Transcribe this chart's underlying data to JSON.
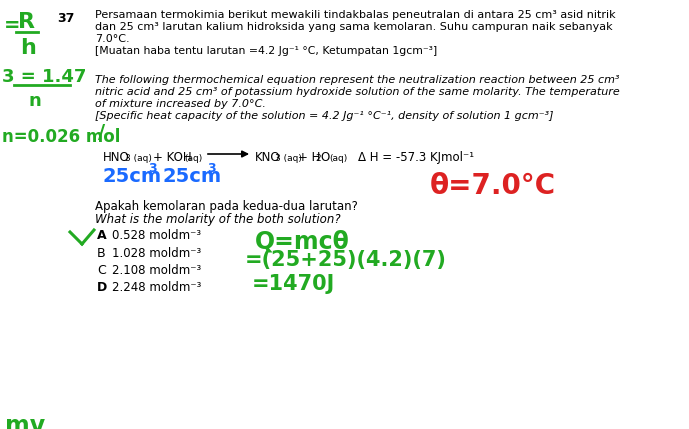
{
  "bg_color": "#ffffff",
  "black": "#000000",
  "green": "#22aa22",
  "blue": "#1a6aff",
  "red": "#dd2222",
  "q_num": "37",
  "ml1": "Persamaan termokimia berikut mewakili tindakbalas peneutralan di antara 25 cm³ asid nitrik",
  "ml2": "dan 25 cm³ larutan kalium hidroksida yang sama kemolaran. Suhu campuran naik sebanyak",
  "ml3": "7.0°C.",
  "ml4": "[Muatan haba tentu larutan =4.2 Jg⁻¹ °C, Ketumpatan 1gcm⁻³]",
  "el1": "The following thermochemical equation represent the neutralization reaction between 25 cm³",
  "el2": "nitric acid and 25 cm³ of potassium hydroxide solution of the same molarity. The temperature",
  "el3": "of mixture increased by 7.0°C.",
  "el4": "[Specific heat capacity of the solution = 4.2 Jg⁻¹ °C⁻¹, density of solution 1 gcm⁻³]",
  "qmalay": "Apakah kemolaran pada kedua-dua larutan?",
  "qenglish": "What is the molarity of the both solution?",
  "optA_letter": "A",
  "optA_val": "0.528 moldm⁻³",
  "optB_letter": "B",
  "optB_val": "1.028 moldm⁻³",
  "optC_letter": "C",
  "optC_val": "2.108 moldm⁻³",
  "optD_letter": "D",
  "optD_val": "2.248 moldm⁻³",
  "mv_text": "mv"
}
